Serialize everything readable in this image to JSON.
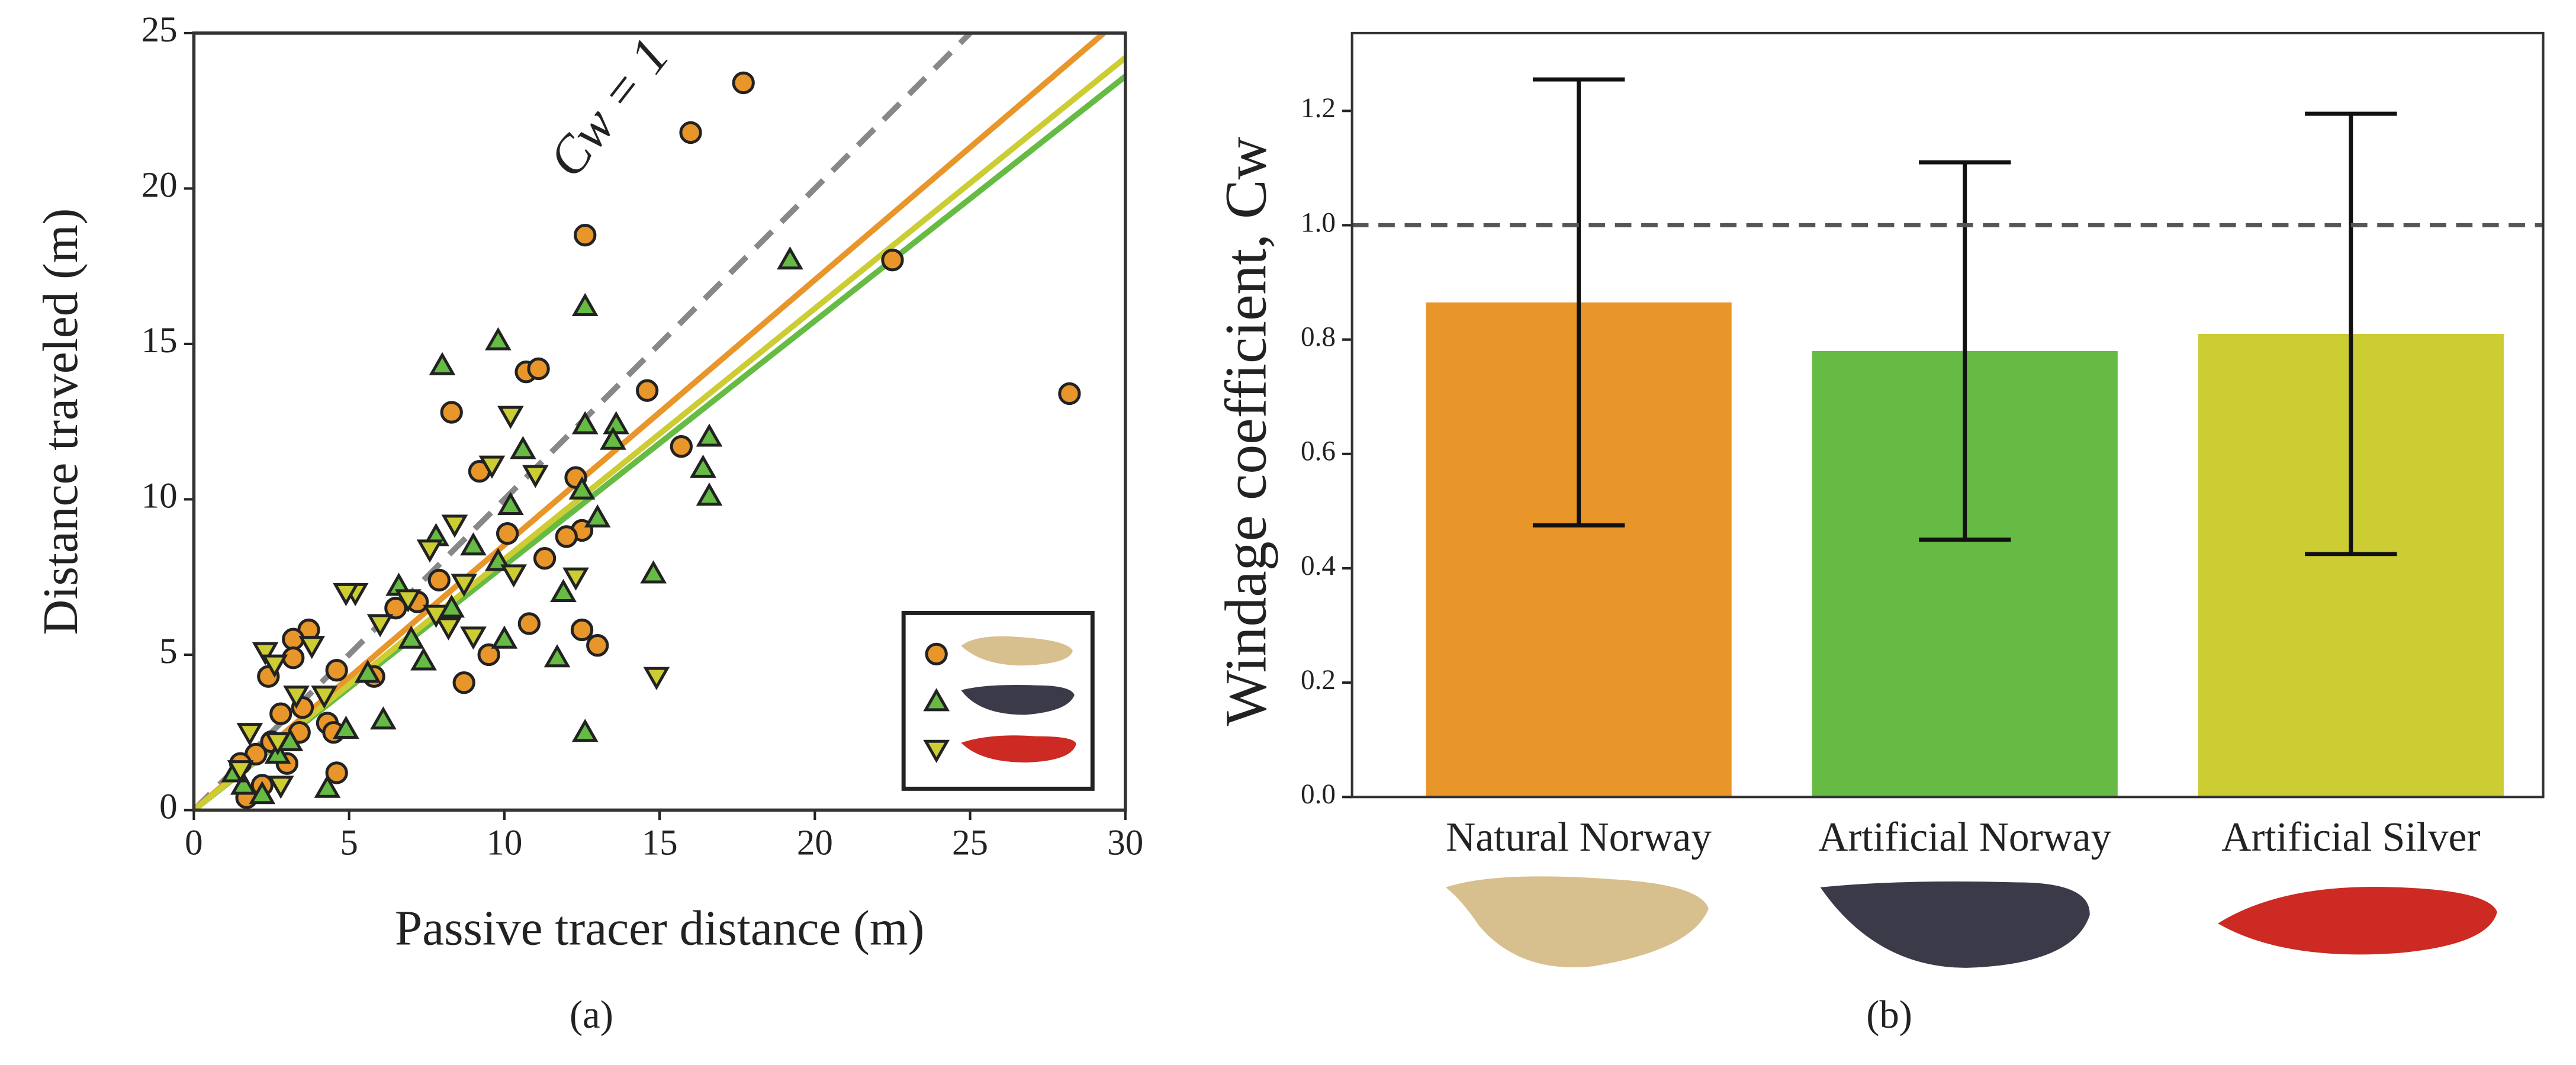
{
  "chart_data": [
    {
      "type": "scatter",
      "caption": "(a)",
      "x_label": "Passive tracer distance (m)",
      "y_label": "Distance traveled (m)",
      "xlim": [
        0,
        30
      ],
      "xticks": [
        0,
        5,
        10,
        15,
        20,
        25,
        30
      ],
      "ylim": [
        0,
        25
      ],
      "yticks": [
        0,
        5,
        10,
        15,
        20,
        25
      ],
      "reference_line": {
        "slope": 1,
        "label": "Cw = 1",
        "color": "#888888"
      },
      "legend": "lower right",
      "series": [
        {
          "marker": "circle",
          "color": "#e8962a",
          "slope": 0.853,
          "x": [
            17.7,
            16,
            12.6,
            22.5,
            28.2,
            14.6,
            10.7,
            11.1,
            8.3,
            15.7,
            12.3,
            9.2,
            10.1,
            11.3,
            12.5,
            12,
            7.9,
            6.5,
            7.2,
            10.8,
            12.5,
            13,
            9.5,
            8.7,
            5.8,
            4.6,
            3.7,
            3.2,
            3.2,
            2.4,
            4.3,
            4.5,
            4.6,
            3.5,
            2.8,
            2.5,
            2,
            1.7,
            3,
            2.2,
            1.5,
            3.4
          ],
          "y": [
            23.4,
            21.8,
            18.5,
            17.7,
            13.4,
            13.5,
            14.1,
            14.2,
            12.8,
            11.7,
            10.7,
            10.9,
            8.9,
            8.1,
            9,
            8.8,
            7.4,
            6.5,
            6.7,
            6,
            5.8,
            5.3,
            5,
            4.1,
            4.3,
            4.5,
            5.8,
            5.5,
            4.9,
            4.3,
            2.8,
            2.5,
            1.2,
            3.3,
            3.1,
            2.2,
            1.8,
            0.4,
            1.5,
            0.8,
            1.5,
            2.5
          ]
        },
        {
          "marker": "triangle-up",
          "color": "#66bb44",
          "slope": 0.787,
          "x": [
            19.2,
            12.6,
            9.8,
            8,
            10.6,
            12.6,
            13.6,
            13.5,
            16.6,
            16.4,
            16.6,
            12.5,
            10.2,
            13,
            9,
            7.8,
            9.8,
            6.6,
            8.3,
            14.8,
            12.6,
            11.7,
            10,
            7.4,
            6.1,
            4.9,
            4.3,
            2.7,
            1.6,
            2.2,
            1.3,
            3.1,
            7,
            5.6,
            11.9
          ],
          "y": [
            17.7,
            16.2,
            15.1,
            14.3,
            11.6,
            12.4,
            12.4,
            11.9,
            12,
            11,
            10.1,
            10.3,
            9.8,
            9.4,
            8.5,
            8.8,
            8,
            7.2,
            6.5,
            7.6,
            2.5,
            4.9,
            5.5,
            4.8,
            2.9,
            2.6,
            0.7,
            1.8,
            0.8,
            0.5,
            1.2,
            2.2,
            5.5,
            4.4,
            7
          ]
        },
        {
          "marker": "triangle-down",
          "color": "#cccc33",
          "slope": 0.807,
          "x": [
            10.2,
            9.6,
            8.4,
            7.6,
            11,
            12.3,
            14.9,
            9,
            8.2,
            7.8,
            6,
            6.9,
            5.2,
            4.9,
            3.8,
            2.3,
            2.6,
            3.3,
            4.2,
            2.7,
            1.5,
            2.8,
            1.8,
            10.3,
            8.7
          ],
          "y": [
            12.7,
            11.1,
            9.2,
            8.4,
            10.8,
            7.5,
            4.3,
            5.6,
            5.9,
            6.3,
            6,
            6.8,
            7,
            7,
            5.3,
            5.1,
            4.7,
            3.7,
            3.7,
            2.2,
            1.3,
            0.8,
            2.5,
            7.6,
            7.3
          ]
        }
      ]
    },
    {
      "type": "bar",
      "caption": "(b)",
      "y_label": "Windage coefficient, Cw",
      "ylim": [
        0,
        1.336
      ],
      "yticks": [
        {
          "value": 0,
          "label": "0.0"
        },
        {
          "value": 0.2,
          "label": "0.2"
        },
        {
          "value": 0.4,
          "label": "0.4"
        },
        {
          "value": 0.6,
          "label": "0.6"
        },
        {
          "value": 0.8,
          "label": "0.8"
        },
        {
          "value": 1,
          "label": "1.0"
        },
        {
          "value": 1.2,
          "label": "1.2"
        }
      ],
      "reference_line": {
        "value": 1,
        "color": "#555555"
      },
      "categories": [
        "Natural Norway",
        "Artificial Norway",
        "Artificial Silver"
      ],
      "values": [
        0.865,
        0.78,
        0.81
      ],
      "errors": [
        0.39,
        0.33,
        0.385
      ],
      "colors": [
        "#e8962a",
        "#66bb44",
        "#cccc33"
      ]
    }
  ]
}
